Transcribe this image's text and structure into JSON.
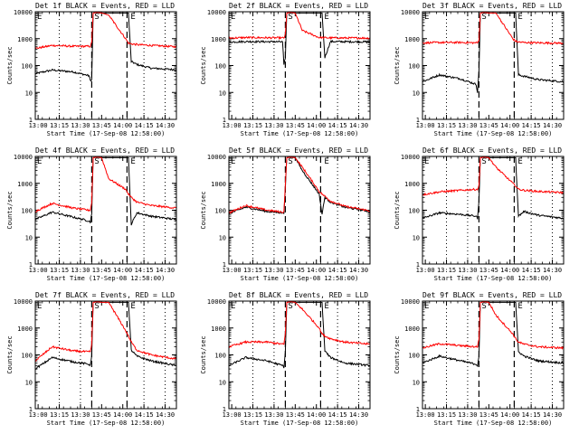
{
  "x_tick_labels": [
    "13:00",
    "13:15",
    "13:30",
    "13:45",
    "14:00",
    "14:15",
    "14:30"
  ],
  "y_tick_labels": [
    "1",
    "10",
    "100",
    "1000",
    "10000"
  ],
  "xlabel": "Start Time (17-Sep-08 12:58:00)",
  "ylabel": "Counts/sec",
  "colors": {
    "events": "#000000",
    "lld": "#ff0000",
    "axes": "#000000"
  },
  "chart_data": [
    {
      "type": "line",
      "title": "Det 1f BLACK = Events, RED = LLD",
      "xlabel": "Start Time (17-Sep-08 12:58:00)",
      "ylabel": "Counts/sec",
      "y_scale": "log",
      "xlim": [
        "12:58",
        "14:38"
      ],
      "ylim": [
        1,
        10000
      ],
      "grid": false,
      "markers": [
        "E",
        "S",
        "E"
      ],
      "dotted_lines_x": [
        "13:15",
        "13:30",
        "14:15",
        "14:30"
      ],
      "dashed_lines_x": [
        "13:38",
        "14:03"
      ],
      "x": [
        "12:58",
        "13:10",
        "13:25",
        "13:36",
        "13:37",
        "13:38",
        "13:39",
        "13:42",
        "13:45",
        "13:50",
        "14:02",
        "14:04",
        "14:06",
        "14:10",
        "14:20",
        "14:38"
      ],
      "series": [
        {
          "name": "BLACK = Events",
          "color": "#000000",
          "values": [
            50,
            68,
            58,
            42,
            28,
            30,
            9000,
            9500,
            9000,
            9000,
            9000,
            9000,
            140,
            110,
            80,
            70
          ]
        },
        {
          "name": "RED = LLD",
          "color": "#ff0000",
          "values": [
            430,
            560,
            520,
            520,
            520,
            700,
            9000,
            9500,
            9000,
            7500,
            1000,
            680,
            640,
            600,
            560,
            500
          ]
        }
      ]
    },
    {
      "type": "line",
      "title": "Det 2f BLACK = Events, RED = LLD",
      "xlabel": "Start Time (17-Sep-08 12:58:00)",
      "ylabel": "Counts/sec",
      "y_scale": "log",
      "xlim": [
        "12:58",
        "14:38"
      ],
      "ylim": [
        1,
        10000
      ],
      "grid": false,
      "markers": [
        "E",
        "S",
        "E"
      ],
      "dotted_lines_x": [
        "13:15",
        "13:30",
        "14:15",
        "14:30"
      ],
      "dashed_lines_x": [
        "13:38",
        "14:03"
      ],
      "x": [
        "12:58",
        "13:10",
        "13:25",
        "13:36",
        "13:37",
        "13:38",
        "13:39",
        "13:42",
        "13:45",
        "13:50",
        "14:02",
        "14:04",
        "14:06",
        "14:10",
        "14:20",
        "14:38"
      ],
      "series": [
        {
          "name": "BLACK = Events",
          "color": "#000000",
          "values": [
            750,
            780,
            770,
            760,
            100,
            200,
            9000,
            9500,
            9000,
            9000,
            9000,
            9000,
            200,
            780,
            770,
            760
          ]
        },
        {
          "name": "RED = LLD",
          "color": "#ff0000",
          "values": [
            1050,
            1100,
            1080,
            1070,
            1070,
            1400,
            9000,
            9500,
            9000,
            2000,
            1100,
            1100,
            1080,
            1070,
            1060,
            1050
          ]
        }
      ]
    },
    {
      "type": "line",
      "title": "Det 3f BLACK = Events, RED = LLD",
      "xlabel": "Start Time (17-Sep-08 12:58:00)",
      "ylabel": "Counts/sec",
      "y_scale": "log",
      "xlim": [
        "12:58",
        "14:38"
      ],
      "ylim": [
        1,
        10000
      ],
      "grid": false,
      "markers": [
        "E",
        "S",
        "E"
      ],
      "dotted_lines_x": [
        "13:15",
        "13:30",
        "14:15",
        "14:30"
      ],
      "dashed_lines_x": [
        "13:38",
        "14:03"
      ],
      "x": [
        "12:58",
        "13:10",
        "13:25",
        "13:36",
        "13:37",
        "13:38",
        "13:39",
        "13:42",
        "13:45",
        "13:50",
        "14:02",
        "14:04",
        "14:06",
        "14:10",
        "14:20",
        "14:38"
      ],
      "series": [
        {
          "name": "BLACK = Events",
          "color": "#000000",
          "values": [
            25,
            45,
            32,
            20,
            10,
            60,
            9000,
            9500,
            9000,
            9000,
            9000,
            9000,
            45,
            40,
            30,
            25
          ]
        },
        {
          "name": "RED = LLD",
          "color": "#ff0000",
          "values": [
            700,
            720,
            720,
            700,
            700,
            900,
            9000,
            9500,
            9000,
            9000,
            1000,
            800,
            750,
            720,
            700,
            680
          ]
        }
      ]
    },
    {
      "type": "line",
      "title": "Det 4f BLACK = Events, RED = LLD",
      "xlabel": "Start Time (17-Sep-08 12:58:00)",
      "ylabel": "Counts/sec",
      "y_scale": "log",
      "xlim": [
        "12:58",
        "14:38"
      ],
      "ylim": [
        1,
        10000
      ],
      "grid": false,
      "markers": [
        "E",
        "S",
        "E"
      ],
      "dotted_lines_x": [
        "13:15",
        "13:30",
        "14:15",
        "14:30"
      ],
      "dashed_lines_x": [
        "13:38",
        "14:03"
      ],
      "x": [
        "12:58",
        "13:10",
        "13:25",
        "13:36",
        "13:37",
        "13:38",
        "13:39",
        "13:42",
        "13:45",
        "13:50",
        "14:02",
        "14:04",
        "14:06",
        "14:10",
        "14:20",
        "14:38"
      ],
      "series": [
        {
          "name": "BLACK = Events",
          "color": "#000000",
          "values": [
            45,
            85,
            55,
            40,
            35,
            80,
            9000,
            9500,
            9000,
            9000,
            9000,
            9000,
            30,
            80,
            60,
            45
          ]
        },
        {
          "name": "RED = LLD",
          "color": "#ff0000",
          "values": [
            90,
            180,
            120,
            100,
            100,
            200,
            9000,
            9500,
            9000,
            1500,
            600,
            400,
            300,
            200,
            150,
            120
          ]
        }
      ]
    },
    {
      "type": "line",
      "title": "Det 5f BLACK = Events, RED = LLD",
      "xlabel": "Start Time (17-Sep-08 12:58:00)",
      "ylabel": "Counts/sec",
      "y_scale": "log",
      "xlim": [
        "12:58",
        "14:38"
      ],
      "ylim": [
        1,
        10000
      ],
      "grid": false,
      "markers": [
        "E",
        "S",
        "E"
      ],
      "dotted_lines_x": [
        "13:15",
        "13:30",
        "14:15",
        "14:30"
      ],
      "dashed_lines_x": [
        "13:38",
        "14:03"
      ],
      "x": [
        "12:58",
        "13:10",
        "13:25",
        "13:36",
        "13:37",
        "13:38",
        "13:39",
        "13:42",
        "13:45",
        "13:50",
        "14:02",
        "14:04",
        "14:06",
        "14:10",
        "14:20",
        "14:38"
      ],
      "series": [
        {
          "name": "BLACK = Events",
          "color": "#000000",
          "values": [
            75,
            130,
            90,
            80,
            75,
            700,
            9000,
            9500,
            9000,
            3000,
            400,
            70,
            300,
            200,
            130,
            90
          ]
        },
        {
          "name": "RED = LLD",
          "color": "#ff0000",
          "values": [
            80,
            150,
            100,
            85,
            85,
            900,
            9000,
            9500,
            9000,
            4000,
            500,
            400,
            330,
            220,
            140,
            95
          ]
        }
      ]
    },
    {
      "type": "line",
      "title": "Det 6f BLACK = Events, RED = LLD",
      "xlabel": "Start Time (17-Sep-08 12:58:00)",
      "ylabel": "Counts/sec",
      "y_scale": "log",
      "xlim": [
        "12:58",
        "14:38"
      ],
      "ylim": [
        1,
        10000
      ],
      "grid": false,
      "markers": [
        "E",
        "S",
        "E"
      ],
      "dotted_lines_x": [
        "13:15",
        "13:30",
        "14:15",
        "14:30"
      ],
      "dashed_lines_x": [
        "13:38",
        "14:03"
      ],
      "x": [
        "12:58",
        "13:10",
        "13:25",
        "13:36",
        "13:37",
        "13:38",
        "13:39",
        "13:42",
        "13:45",
        "13:50",
        "14:02",
        "14:04",
        "14:06",
        "14:10",
        "14:20",
        "14:38"
      ],
      "series": [
        {
          "name": "BLACK = Events",
          "color": "#000000",
          "values": [
            50,
            80,
            70,
            60,
            50,
            200,
            9000,
            9500,
            9000,
            9000,
            9000,
            9000,
            60,
            90,
            65,
            50
          ]
        },
        {
          "name": "RED = LLD",
          "color": "#ff0000",
          "values": [
            380,
            480,
            550,
            600,
            600,
            800,
            9000,
            9500,
            9000,
            4000,
            1000,
            800,
            600,
            550,
            500,
            450
          ]
        }
      ]
    },
    {
      "type": "line",
      "title": "Det 7f BLACK = Events, RED = LLD",
      "xlabel": "Start Time (17-Sep-08 12:58:00)",
      "ylabel": "Counts/sec",
      "y_scale": "log",
      "xlim": [
        "12:58",
        "14:38"
      ],
      "ylim": [
        1,
        10000
      ],
      "grid": false,
      "markers": [
        "E",
        "S",
        "E"
      ],
      "dotted_lines_x": [
        "13:15",
        "13:30",
        "14:15",
        "14:30"
      ],
      "dashed_lines_x": [
        "13:38",
        "14:03"
      ],
      "x": [
        "12:58",
        "13:10",
        "13:25",
        "13:36",
        "13:37",
        "13:38",
        "13:39",
        "13:42",
        "13:45",
        "13:50",
        "14:02",
        "14:04",
        "14:06",
        "14:10",
        "14:20",
        "14:38"
      ],
      "series": [
        {
          "name": "BLACK = Events",
          "color": "#000000",
          "values": [
            30,
            80,
            55,
            45,
            40,
            100,
            9000,
            9500,
            9000,
            9000,
            9000,
            9000,
            150,
            90,
            60,
            40
          ]
        },
        {
          "name": "RED = LLD",
          "color": "#ff0000",
          "values": [
            60,
            200,
            140,
            130,
            130,
            250,
            9000,
            9500,
            9000,
            9000,
            800,
            500,
            300,
            150,
            100,
            70
          ]
        }
      ]
    },
    {
      "type": "line",
      "title": "Det 8f BLACK = Events, RED = LLD",
      "xlabel": "Start Time (17-Sep-08 12:58:00)",
      "ylabel": "Counts/sec",
      "y_scale": "log",
      "xlim": [
        "12:58",
        "14:38"
      ],
      "ylim": [
        1,
        10000
      ],
      "grid": false,
      "markers": [
        "E",
        "S",
        "E"
      ],
      "dotted_lines_x": [
        "13:15",
        "13:30",
        "14:15",
        "14:30"
      ],
      "dashed_lines_x": [
        "13:38",
        "14:03"
      ],
      "x": [
        "12:58",
        "13:10",
        "13:25",
        "13:36",
        "13:37",
        "13:38",
        "13:39",
        "13:42",
        "13:45",
        "13:50",
        "14:02",
        "14:04",
        "14:06",
        "14:10",
        "14:20",
        "14:38"
      ],
      "series": [
        {
          "name": "BLACK = Events",
          "color": "#000000",
          "values": [
            40,
            80,
            60,
            40,
            35,
            120,
            9000,
            9500,
            9000,
            9000,
            9000,
            9000,
            140,
            80,
            50,
            40
          ]
        },
        {
          "name": "RED = LLD",
          "color": "#ff0000",
          "values": [
            200,
            300,
            300,
            250,
            250,
            600,
            9000,
            9500,
            9000,
            5000,
            1000,
            600,
            500,
            400,
            300,
            250
          ]
        }
      ]
    },
    {
      "type": "line",
      "title": "Det 9f BLACK = Events, RED = LLD",
      "xlabel": "Start Time (17-Sep-08 12:58:00)",
      "ylabel": "Counts/sec",
      "y_scale": "log",
      "xlim": [
        "12:58",
        "14:38"
      ],
      "ylim": [
        1,
        10000
      ],
      "grid": false,
      "markers": [
        "E",
        "S",
        "E"
      ],
      "dotted_lines_x": [
        "13:15",
        "13:30",
        "14:15",
        "14:30"
      ],
      "dashed_lines_x": [
        "13:38",
        "14:03"
      ],
      "x": [
        "12:58",
        "13:10",
        "13:25",
        "13:36",
        "13:37",
        "13:38",
        "13:39",
        "13:42",
        "13:45",
        "13:50",
        "14:02",
        "14:04",
        "14:06",
        "14:10",
        "14:20",
        "14:38"
      ],
      "series": [
        {
          "name": "BLACK = Events",
          "color": "#000000",
          "values": [
            50,
            90,
            60,
            45,
            40,
            90,
            9000,
            9500,
            9000,
            9000,
            9000,
            9000,
            130,
            90,
            60,
            50
          ]
        },
        {
          "name": "RED = LLD",
          "color": "#ff0000",
          "values": [
            180,
            260,
            220,
            200,
            200,
            400,
            9000,
            9500,
            9000,
            3000,
            600,
            400,
            300,
            250,
            200,
            180
          ]
        }
      ]
    }
  ]
}
